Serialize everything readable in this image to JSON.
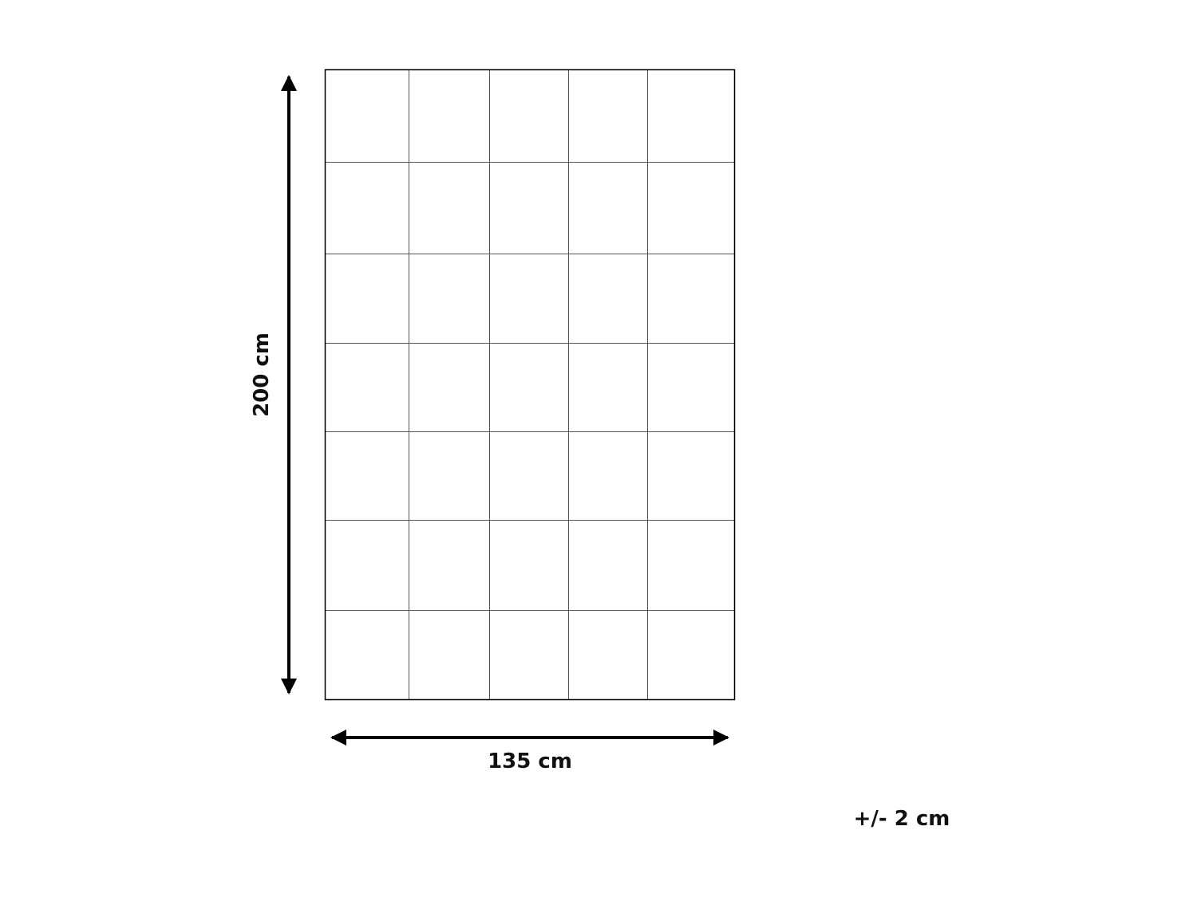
{
  "diagram": {
    "width_label": "135 cm",
    "height_label": "200 cm",
    "tolerance_label": "+/- 2 cm",
    "grid": {
      "columns": 5,
      "rows": 7
    },
    "line_color": "#000000",
    "grid_line_color": "#555555"
  }
}
